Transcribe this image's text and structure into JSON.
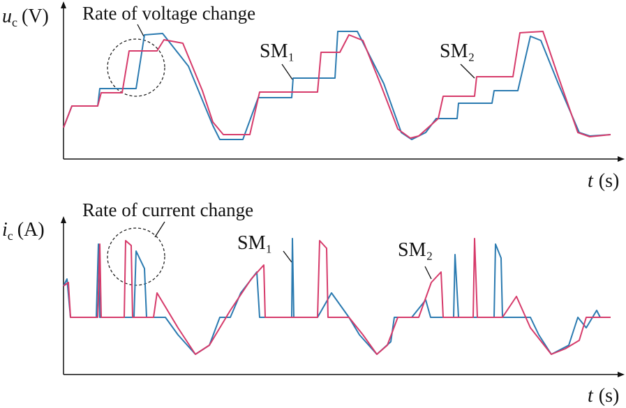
{
  "chart_data": [
    {
      "type": "line",
      "y_label": {
        "symbol": "u",
        "subscript": "c",
        "unit": "(V)"
      },
      "x_label": {
        "symbol": "t",
        "unit": "(s)"
      },
      "annotations": [
        "Rate of voltage change"
      ],
      "xlim": [
        0,
        794
      ],
      "ylim": [
        0,
        223
      ],
      "series": [
        {
          "name": "SM₁",
          "color": "#2a7ab0",
          "x": [
            0,
            12,
            49,
            52,
            104,
            116,
            142,
            179,
            214,
            224,
            257,
            279,
            327,
            329,
            389,
            393,
            421,
            459,
            484,
            499,
            509,
            519,
            534,
            564,
            566,
            614,
            617,
            651,
            669,
            684,
            709,
            739,
            754,
            784
          ],
          "values": [
            45,
            76,
            76,
            101,
            101,
            178,
            180,
            133,
            48,
            28,
            28,
            88,
            88,
            116,
            116,
            183,
            183,
            108,
            38,
            28,
            33,
            38,
            58,
            58,
            80,
            80,
            98,
            98,
            176,
            170,
            108,
            38,
            33,
            35
          ]
        },
        {
          "name": "SM₂",
          "color": "#d63a6a",
          "x": [
            0,
            12,
            49,
            54,
            84,
            94,
            134,
            144,
            171,
            199,
            214,
            229,
            267,
            281,
            364,
            369,
            396,
            409,
            429,
            454,
            479,
            497,
            509,
            537,
            544,
            589,
            592,
            644,
            654,
            687,
            709,
            737,
            754,
            784
          ],
          "values": [
            45,
            76,
            76,
            95,
            95,
            155,
            155,
            171,
            166,
            98,
            53,
            35,
            35,
            96,
            96,
            153,
            153,
            178,
            170,
            108,
            43,
            30,
            33,
            58,
            90,
            90,
            118,
            118,
            181,
            183,
            118,
            38,
            32,
            35
          ]
        }
      ]
    },
    {
      "type": "line",
      "y_label": {
        "symbol": "i",
        "subscript": "c",
        "unit": "(A)"
      },
      "x_label": {
        "symbol": "t",
        "unit": "(s)"
      },
      "annotations": [
        "Rate of current change"
      ],
      "xlim": [
        0,
        794
      ],
      "ylim": [
        0,
        227
      ],
      "series": [
        {
          "name": "SM₁",
          "color": "#2a7ab0",
          "x": [
            0,
            5,
            10,
            47,
            50,
            52,
            101,
            104,
            116,
            119,
            146,
            164,
            189,
            209,
            224,
            239,
            254,
            277,
            281,
            327,
            328,
            330,
            364,
            384,
            409,
            424,
            449,
            469,
            474,
            499,
            519,
            526,
            559,
            561,
            566,
            617,
            619,
            627,
            629,
            669,
            681,
            699,
            724,
            737,
            749,
            764,
            769,
            784
          ],
          "values": [
            127,
            137,
            82,
            82,
            187,
            82,
            82,
            177,
            152,
            82,
            82,
            57,
            29,
            42,
            82,
            82,
            117,
            147,
            82,
            82,
            195,
            82,
            82,
            117,
            82,
            57,
            29,
            47,
            82,
            82,
            107,
            82,
            82,
            172,
            82,
            82,
            187,
            167,
            82,
            82,
            57,
            29,
            42,
            82,
            67,
            92,
            82,
            82
          ]
        },
        {
          "name": "SM₂",
          "color": "#d63a6a",
          "x": [
            0,
            7,
            10,
            49,
            52,
            54,
            87,
            89,
            97,
            99,
            129,
            134,
            164,
            189,
            209,
            239,
            269,
            287,
            289,
            364,
            367,
            377,
            379,
            409,
            429,
            449,
            464,
            479,
            509,
            527,
            541,
            544,
            587,
            589,
            593,
            629,
            649,
            669,
            699,
            719,
            739,
            749,
            784
          ],
          "values": [
            127,
            132,
            82,
            82,
            187,
            82,
            82,
            192,
            185,
            82,
            82,
            117,
            67,
            29,
            42,
            92,
            137,
            157,
            82,
            82,
            192,
            181,
            82,
            82,
            57,
            29,
            42,
            82,
            82,
            132,
            147,
            82,
            82,
            195,
            82,
            82,
            112,
            67,
            29,
            37,
            49,
            82,
            82
          ]
        }
      ]
    }
  ]
}
